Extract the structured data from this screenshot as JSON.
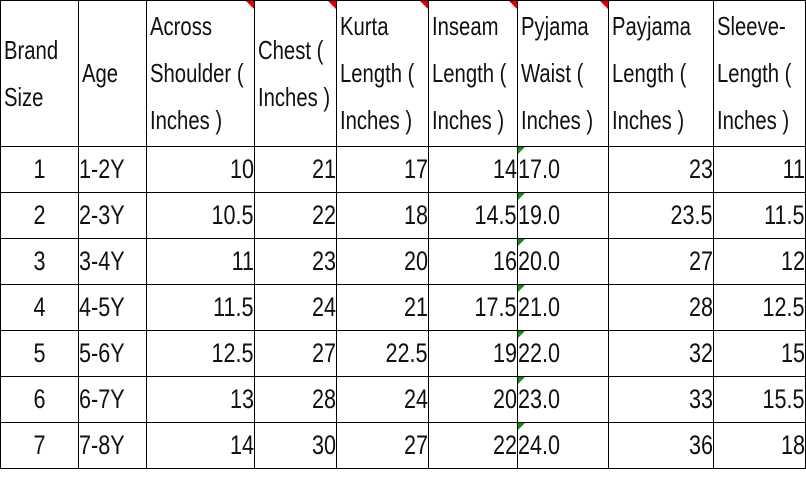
{
  "table": {
    "headers": [
      "Brand Size",
      "Age",
      "Across Shoulder ( Inches )",
      "Chest ( Inches )",
      "Kurta Length ( Inches )",
      "Inseam Length ( Inches )",
      "Pyjama Waist ( Inches )",
      "Payjama Length ( Inches )",
      "Sleeve-Length ( Inches )"
    ],
    "rows": [
      [
        "1",
        "1-2Y",
        "10",
        "21",
        "17",
        "14",
        "17.0",
        "23",
        "11"
      ],
      [
        "2",
        "2-3Y",
        "10.5",
        "22",
        "18",
        "14.5",
        "19.0",
        "23.5",
        "11.5"
      ],
      [
        "3",
        "3-4Y",
        "11",
        "23",
        "20",
        "16",
        "20.0",
        "27",
        "12"
      ],
      [
        "4",
        "4-5Y",
        "11.5",
        "24",
        "21",
        "17.5",
        "21.0",
        "28",
        "12.5"
      ],
      [
        "5",
        "5-6Y",
        "12.5",
        "27",
        "22.5",
        "19",
        "22.0",
        "32",
        "15"
      ],
      [
        "6",
        "6-7Y",
        "13",
        "28",
        "24",
        "20",
        "23.0",
        "33",
        "15.5"
      ],
      [
        "7",
        "7-8Y",
        "14",
        "30",
        "27",
        "22",
        "24.0",
        "36",
        "18"
      ]
    ]
  },
  "indicators": {
    "comment_flag_color": "#e00000",
    "text_number_flag_color": "#1a8a1a"
  }
}
